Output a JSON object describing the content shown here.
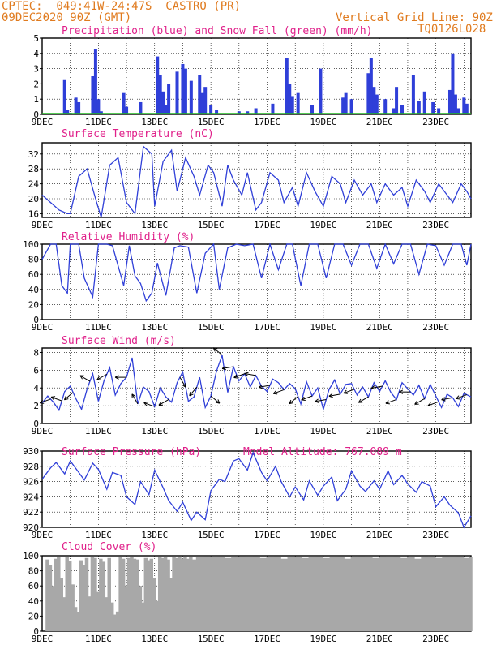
{
  "header": {
    "line1_left": "CPTEC:  049:41W-24:47S  CASTRO (PR)",
    "line2_left": "09DEC2020 90Z (GMT)",
    "line2_right": "Vertical Grid Line: 90Z",
    "line3_right": "TQ0126L028",
    "color_orange": "#e07b1f",
    "color_magenta": "#e0208a"
  },
  "x_axis": {
    "ticks": [
      "9DEC",
      "11DEC",
      "13DEC",
      "15DEC",
      "17DEC",
      "19DEC",
      "21DEC",
      "23DEC"
    ],
    "days_span": 15.25
  },
  "colors": {
    "line": "#2f3fd8",
    "precip": "#2f3fd8",
    "snow": "#1fb81f",
    "cloud": "#a8a8a8",
    "grid": "#000000"
  },
  "chart_data": [
    {
      "type": "bar",
      "title": "Precipitation (blue) and Snow Fall (green) (mm/h)",
      "ylim": [
        0,
        5
      ],
      "yticks": [
        "0",
        "1",
        "2",
        "3",
        "4",
        "5"
      ],
      "x": [
        0.8,
        0.9,
        1.0,
        1.2,
        1.3,
        1.8,
        1.9,
        2.0,
        2.1,
        2.9,
        3.0,
        3.5,
        4.1,
        4.2,
        4.3,
        4.4,
        4.5,
        4.8,
        5.0,
        5.1,
        5.3,
        5.6,
        5.7,
        5.8,
        6.0,
        6.2,
        7.0,
        7.3,
        7.6,
        8.2,
        8.7,
        8.8,
        8.9,
        9.1,
        9.6,
        9.9,
        10.7,
        10.8,
        11.0,
        11.6,
        11.7,
        11.8,
        11.9,
        12.2,
        12.5,
        12.6,
        12.8,
        13.2,
        13.4,
        13.6,
        13.9,
        14.1,
        14.5,
        14.6,
        14.7,
        14.8,
        15.0,
        15.1
      ],
      "values": [
        2.3,
        0.3,
        0.1,
        1.1,
        0.8,
        2.5,
        4.3,
        1.0,
        0.2,
        1.4,
        0.5,
        0.8,
        3.8,
        2.6,
        1.5,
        0.6,
        2.0,
        2.8,
        3.3,
        3.0,
        2.2,
        2.6,
        1.4,
        1.8,
        0.6,
        0.3,
        0.2,
        0.2,
        0.4,
        0.7,
        3.7,
        2.0,
        1.2,
        1.4,
        0.6,
        3.0,
        1.1,
        1.4,
        1.0,
        2.7,
        3.7,
        1.8,
        1.3,
        1.0,
        0.4,
        1.8,
        0.6,
        2.6,
        0.9,
        1.5,
        0.8,
        0.4,
        1.6,
        4.0,
        1.3,
        0.4,
        1.1,
        0.7
      ],
      "snow_values": []
    },
    {
      "type": "line",
      "title": "Surface Temperature (nC)",
      "ylim": [
        15,
        35
      ],
      "yticks": [
        "16",
        "20",
        "24",
        "28",
        "32"
      ],
      "ytick_values": [
        16,
        20,
        24,
        28,
        32
      ],
      "x": [
        0,
        0.3,
        0.6,
        0.9,
        1.0,
        1.3,
        1.6,
        1.9,
        2.1,
        2.4,
        2.7,
        3.0,
        3.3,
        3.6,
        3.9,
        4.0,
        4.3,
        4.6,
        4.8,
        5.1,
        5.4,
        5.6,
        5.9,
        6.1,
        6.4,
        6.6,
        6.8,
        7.1,
        7.3,
        7.6,
        7.8,
        8.1,
        8.4,
        8.6,
        8.9,
        9.1,
        9.4,
        9.7,
        10.0,
        10.3,
        10.6,
        10.8,
        11.1,
        11.4,
        11.7,
        11.9,
        12.2,
        12.5,
        12.8,
        13.0,
        13.3,
        13.6,
        13.8,
        14.1,
        14.4,
        14.6,
        14.9,
        15.1,
        15.25
      ],
      "values": [
        21,
        19,
        17,
        16,
        16,
        26,
        28,
        20,
        15,
        29,
        31,
        19,
        16,
        34,
        32,
        18,
        30,
        33,
        22,
        31,
        26,
        21,
        29,
        27,
        18,
        29,
        25,
        21,
        27,
        17,
        19,
        27,
        25,
        19,
        23,
        18,
        27,
        22,
        18,
        26,
        24,
        19,
        25,
        21,
        24,
        19,
        24,
        21,
        23,
        18,
        25,
        22,
        19,
        24,
        21,
        19,
        24,
        22,
        20
      ]
    },
    {
      "type": "line",
      "title": "Relative Humidity (%)",
      "ylim": [
        0,
        100
      ],
      "yticks": [
        "0",
        "20",
        "40",
        "60",
        "80",
        "100"
      ],
      "ytick_values": [
        0,
        20,
        40,
        60,
        80,
        100
      ],
      "x": [
        0,
        0.3,
        0.5,
        0.7,
        0.9,
        1.0,
        1.3,
        1.5,
        1.8,
        2.0,
        2.3,
        2.5,
        2.9,
        3.1,
        3.3,
        3.5,
        3.7,
        3.9,
        4.1,
        4.4,
        4.7,
        4.9,
        5.2,
        5.5,
        5.8,
        6.1,
        6.3,
        6.6,
        6.9,
        7.2,
        7.5,
        7.8,
        8.1,
        8.4,
        8.7,
        8.9,
        9.2,
        9.5,
        9.8,
        10.1,
        10.4,
        10.7,
        11.0,
        11.3,
        11.6,
        11.9,
        12.2,
        12.5,
        12.8,
        13.1,
        13.4,
        13.7,
        14.0,
        14.3,
        14.6,
        14.9,
        15.1,
        15.25
      ],
      "values": [
        80,
        100,
        100,
        45,
        35,
        100,
        100,
        55,
        30,
        100,
        100,
        98,
        45,
        98,
        58,
        48,
        25,
        35,
        75,
        32,
        95,
        98,
        96,
        35,
        88,
        100,
        40,
        95,
        100,
        98,
        100,
        55,
        100,
        66,
        100,
        100,
        45,
        100,
        100,
        55,
        100,
        100,
        72,
        100,
        100,
        68,
        100,
        74,
        100,
        100,
        60,
        100,
        98,
        72,
        100,
        100,
        72,
        100
      ]
    },
    {
      "type": "line",
      "title": "Surface Wind (m/s)",
      "ylim": [
        0,
        8.5
      ],
      "yticks": [
        "0",
        "2",
        "4",
        "6",
        "8"
      ],
      "ytick_values": [
        0,
        2,
        4,
        6,
        8
      ],
      "x": [
        0,
        0.2,
        0.4,
        0.6,
        0.8,
        1.0,
        1.2,
        1.4,
        1.6,
        1.8,
        2.0,
        2.2,
        2.4,
        2.6,
        2.8,
        3.0,
        3.2,
        3.4,
        3.6,
        3.8,
        4.0,
        4.2,
        4.4,
        4.6,
        4.8,
        5.0,
        5.2,
        5.4,
        5.6,
        5.8,
        6.0,
        6.2,
        6.4,
        6.6,
        6.8,
        7.0,
        7.2,
        7.4,
        7.6,
        7.8,
        8.0,
        8.2,
        8.4,
        8.6,
        8.8,
        9.0,
        9.2,
        9.4,
        9.6,
        9.8,
        10.0,
        10.2,
        10.4,
        10.6,
        10.8,
        11.0,
        11.2,
        11.4,
        11.6,
        11.8,
        12.0,
        12.2,
        12.4,
        12.6,
        12.8,
        13.0,
        13.2,
        13.4,
        13.6,
        13.8,
        14.0,
        14.2,
        14.4,
        14.6,
        14.8,
        15.0,
        15.25
      ],
      "values": [
        2.3,
        3.1,
        2.4,
        1.5,
        3.6,
        4.2,
        2.8,
        1.6,
        3.9,
        5.6,
        2.5,
        4.8,
        6.3,
        3.2,
        4.5,
        5.2,
        7.4,
        2.2,
        4.1,
        3.6,
        1.9,
        4.0,
        3.0,
        2.4,
        4.6,
        5.8,
        2.5,
        3.0,
        5.2,
        1.8,
        3.1,
        5.9,
        7.7,
        3.5,
        6.4,
        4.8,
        5.6,
        4.1,
        5.4,
        4.2,
        3.6,
        5.0,
        4.6,
        3.8,
        4.5,
        3.9,
        2.2,
        4.7,
        3.1,
        4.0,
        1.6,
        3.8,
        4.9,
        3.3,
        4.4,
        4.5,
        3.2,
        4.1,
        3.0,
        4.6,
        3.6,
        4.8,
        3.5,
        2.7,
        4.6,
        3.9,
        3.2,
        4.3,
        2.8,
        4.4,
        3.1,
        1.8,
        3.3,
        2.9,
        1.9,
        3.4,
        3.0
      ],
      "arrows_x": [
        0.3,
        0.7,
        1.1,
        1.7,
        2.3,
        3.0,
        3.4,
        4.0,
        4.5,
        4.9,
        5.5,
        6.0,
        6.4,
        6.8,
        7.2,
        7.6,
        8.1,
        8.6,
        9.1,
        9.6,
        10.1,
        10.6,
        11.1,
        11.6,
        12.1,
        12.6,
        13.1,
        13.6,
        14.1,
        14.6,
        15.1
      ],
      "arrows_dir": [
        200,
        160,
        220,
        150,
        210,
        180,
        120,
        160,
        210,
        300,
        230,
        320,
        140,
        190,
        200,
        170,
        190,
        200,
        220,
        200,
        190,
        190,
        200,
        210,
        190,
        200,
        180,
        210,
        200,
        190,
        200
      ]
    },
    {
      "type": "line",
      "title": "Surface Pressure (hPa)",
      "annotation": "Model Altitude: 767.089 m",
      "ylim": [
        920,
        930
      ],
      "yticks": [
        "920",
        "922",
        "924",
        "926",
        "928",
        "930"
      ],
      "ytick_values": [
        920,
        922,
        924,
        926,
        928,
        930
      ],
      "x": [
        0,
        0.3,
        0.5,
        0.8,
        1.0,
        1.3,
        1.5,
        1.8,
        2.0,
        2.3,
        2.5,
        2.8,
        3.0,
        3.3,
        3.5,
        3.8,
        4.0,
        4.3,
        4.5,
        4.8,
        5.0,
        5.3,
        5.5,
        5.8,
        6.0,
        6.3,
        6.5,
        6.8,
        7.0,
        7.3,
        7.5,
        7.8,
        8.0,
        8.3,
        8.5,
        8.8,
        9.0,
        9.3,
        9.5,
        9.8,
        10.0,
        10.3,
        10.5,
        10.8,
        11.0,
        11.3,
        11.5,
        11.8,
        12.0,
        12.3,
        12.5,
        12.8,
        13.0,
        13.3,
        13.5,
        13.8,
        14.0,
        14.3,
        14.5,
        14.8,
        15.0,
        15.25
      ],
      "values": [
        926.3,
        927.8,
        928.5,
        927.0,
        928.7,
        927.2,
        926.2,
        928.4,
        927.6,
        925.0,
        927.2,
        926.8,
        924.0,
        923.0,
        926.0,
        924.3,
        927.5,
        925.2,
        923.5,
        922.1,
        923.3,
        920.9,
        922.0,
        921.0,
        924.8,
        926.3,
        926.0,
        928.7,
        929.0,
        927.5,
        929.8,
        927.2,
        926.1,
        928.0,
        926.0,
        924.0,
        925.3,
        923.6,
        926.1,
        924.2,
        925.4,
        926.6,
        923.5,
        925.0,
        927.4,
        925.4,
        924.7,
        926.1,
        925.0,
        927.4,
        925.6,
        926.8,
        925.7,
        924.6,
        926.0,
        925.4,
        922.7,
        924.0,
        922.9,
        921.9,
        920.0,
        921.5
      ]
    },
    {
      "type": "bar",
      "title": "Cloud Cover (%)",
      "ylim": [
        0,
        100
      ],
      "yticks": [
        "0",
        "20",
        "40",
        "60",
        "80",
        "100"
      ],
      "ytick_values": [
        0,
        20,
        40,
        60,
        80,
        100
      ],
      "x": [
        0.15,
        0.25,
        0.35,
        0.45,
        0.55,
        0.65,
        0.75,
        0.85,
        0.95,
        1.05,
        1.15,
        1.25,
        1.35,
        1.45,
        1.55,
        1.65,
        1.75,
        1.85,
        1.95,
        2.05,
        2.15,
        2.25,
        2.35,
        2.45,
        2.55,
        2.65,
        2.75,
        2.85,
        2.95,
        3.05,
        3.15,
        3.25,
        3.35,
        3.45,
        3.55,
        3.65,
        3.75,
        3.85,
        3.95,
        4.05,
        4.15,
        4.25,
        4.35,
        4.45,
        4.55,
        4.65,
        4.75,
        4.85,
        4.95,
        5.05,
        5.15,
        5.25,
        5.35,
        5.5,
        5.75,
        6.0,
        6.25,
        6.5,
        6.75,
        7.0,
        7.25,
        7.5,
        7.75,
        8.0,
        8.25,
        8.5,
        8.75,
        9.0,
        9.25,
        9.5,
        9.75,
        10.0,
        10.25,
        10.5,
        10.75,
        11.0,
        11.25,
        11.5,
        11.75,
        12.0,
        12.25,
        12.5,
        12.75,
        13.0,
        13.25,
        13.5,
        13.75,
        14.0,
        14.25,
        14.5,
        14.75,
        15.0,
        15.2
      ],
      "values": [
        95,
        88,
        60,
        96,
        98,
        70,
        45,
        98,
        93,
        62,
        32,
        25,
        94,
        88,
        97,
        46,
        98,
        97,
        52,
        96,
        92,
        45,
        97,
        38,
        22,
        26,
        98,
        96,
        60,
        97,
        98,
        96,
        95,
        60,
        38,
        97,
        94,
        96,
        70,
        40,
        98,
        97,
        99,
        95,
        70,
        99,
        97,
        98,
        96,
        98,
        96,
        98,
        95,
        99,
        98,
        99,
        98,
        97,
        99,
        98,
        99,
        98,
        97,
        99,
        98,
        96,
        99,
        98,
        97,
        99,
        98,
        97,
        99,
        98,
        96,
        99,
        98,
        99,
        97,
        98,
        99,
        98,
        97,
        99,
        96,
        98,
        99,
        97,
        98,
        99,
        98,
        97,
        98
      ]
    }
  ]
}
